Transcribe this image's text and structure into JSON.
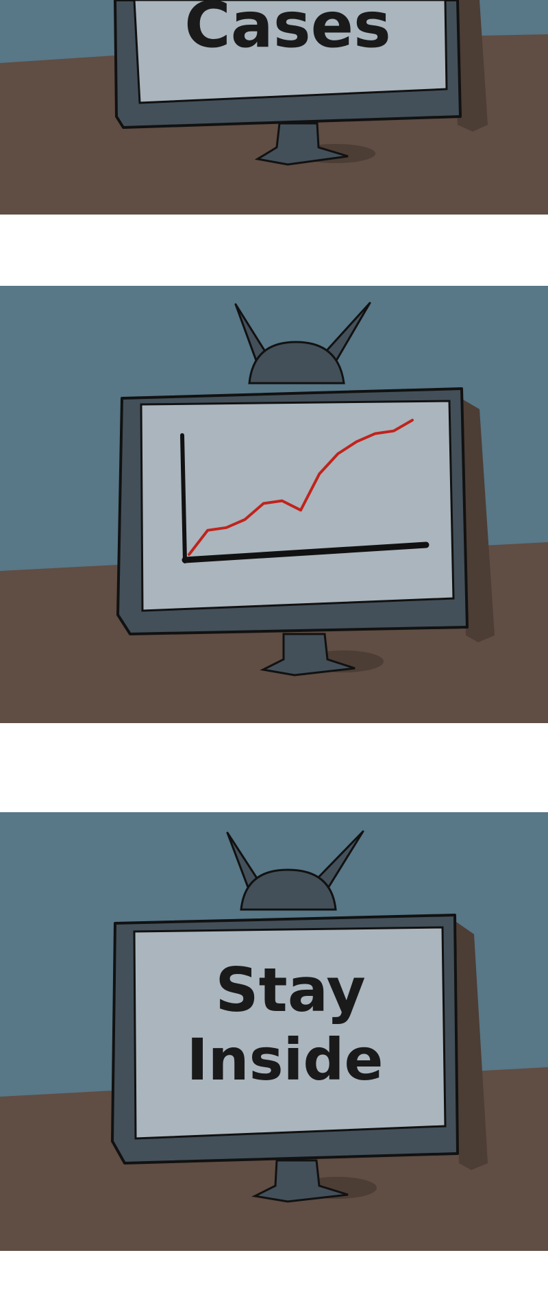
{
  "colors": {
    "wall": "#587787",
    "floor": "#604d43",
    "tv_body": "#435059",
    "tv_screen": "#aab5bd",
    "outline": "#111111",
    "trend_line": "#c0231c",
    "shadow": "#4c3d35",
    "background": "#ffffff"
  },
  "panels": [
    {
      "name": "cases-panel",
      "screen_text_lines": [
        "Cases"
      ]
    },
    {
      "name": "chart-panel",
      "screen_content": "rising-line-chart",
      "trend": [
        0.0,
        0.18,
        0.2,
        0.26,
        0.38,
        0.4,
        0.33,
        0.6,
        0.75,
        0.84,
        0.9,
        0.92,
        1.0
      ]
    },
    {
      "name": "stay-inside-panel",
      "screen_text_lines": [
        "Stay",
        "Inside"
      ]
    }
  ],
  "icons": {
    "antenna": "tv-antenna-icon",
    "stand": "tv-stand-icon"
  }
}
